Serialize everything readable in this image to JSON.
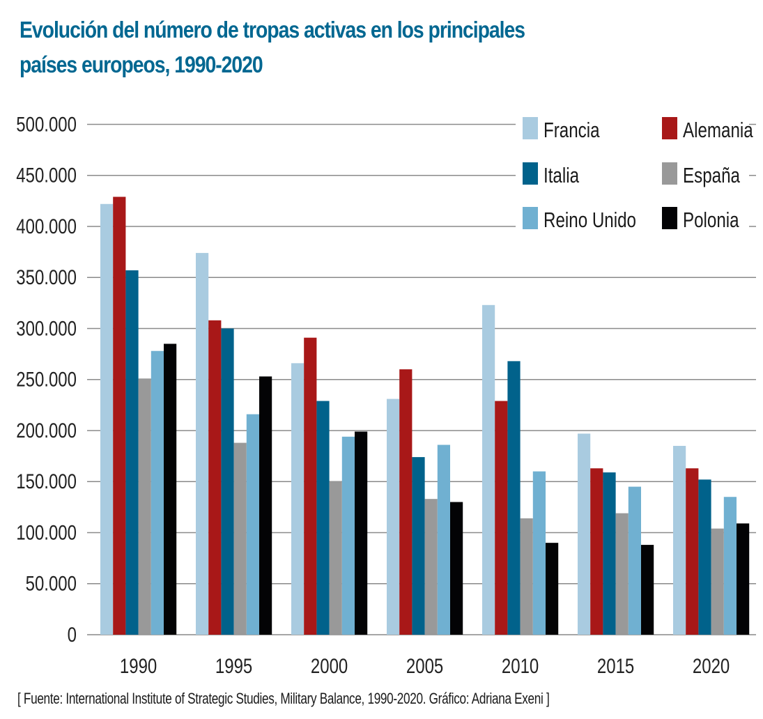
{
  "title_lines": [
    "Evolución del número de tropas activas en los principales",
    "países europeos, 1990-2020"
  ],
  "source": "[ Fuente: International Institute of Strategic Studies, Military Balance, 1990-2020. Gráfico: Adriana Exeni ]",
  "chart_data": {
    "type": "bar",
    "title": "Evolución del número de tropas activas en los principales países europeos, 1990-2020",
    "xlabel": "",
    "ylabel": "",
    "categories": [
      "1990",
      "1995",
      "2000",
      "2005",
      "2010",
      "2015",
      "2020"
    ],
    "ylim": [
      0,
      500000
    ],
    "yticks": [
      0,
      50000,
      100000,
      150000,
      200000,
      250000,
      300000,
      350000,
      400000,
      450000,
      500000
    ],
    "ytick_labels": [
      "0",
      "50.000",
      "100.000",
      "150.000",
      "200.000",
      "250.000",
      "300.000",
      "350.000",
      "400.000",
      "450.000",
      "500.000"
    ],
    "grid": true,
    "legend_position": "top-right",
    "series": [
      {
        "name": "Francia",
        "color": "#a9cbe0",
        "values": [
          422000,
          374000,
          266000,
          231000,
          323000,
          197000,
          185000
        ]
      },
      {
        "name": "Alemania",
        "color": "#a81818",
        "values": [
          429000,
          308000,
          291000,
          260000,
          229000,
          163000,
          163000
        ]
      },
      {
        "name": "Italia",
        "color": "#01628b",
        "values": [
          357000,
          300000,
          229000,
          174000,
          268000,
          159000,
          152000
        ]
      },
      {
        "name": "España",
        "color": "#999999",
        "values": [
          251000,
          188000,
          150000,
          133000,
          114000,
          119000,
          104000
        ]
      },
      {
        "name": "Reino Unido",
        "color": "#70b0d1",
        "values": [
          278000,
          216000,
          194000,
          186000,
          160000,
          145000,
          135000
        ]
      },
      {
        "name": "Polonia",
        "color": "#030305",
        "values": [
          285000,
          253000,
          199000,
          130000,
          90000,
          88000,
          109000
        ]
      }
    ]
  }
}
